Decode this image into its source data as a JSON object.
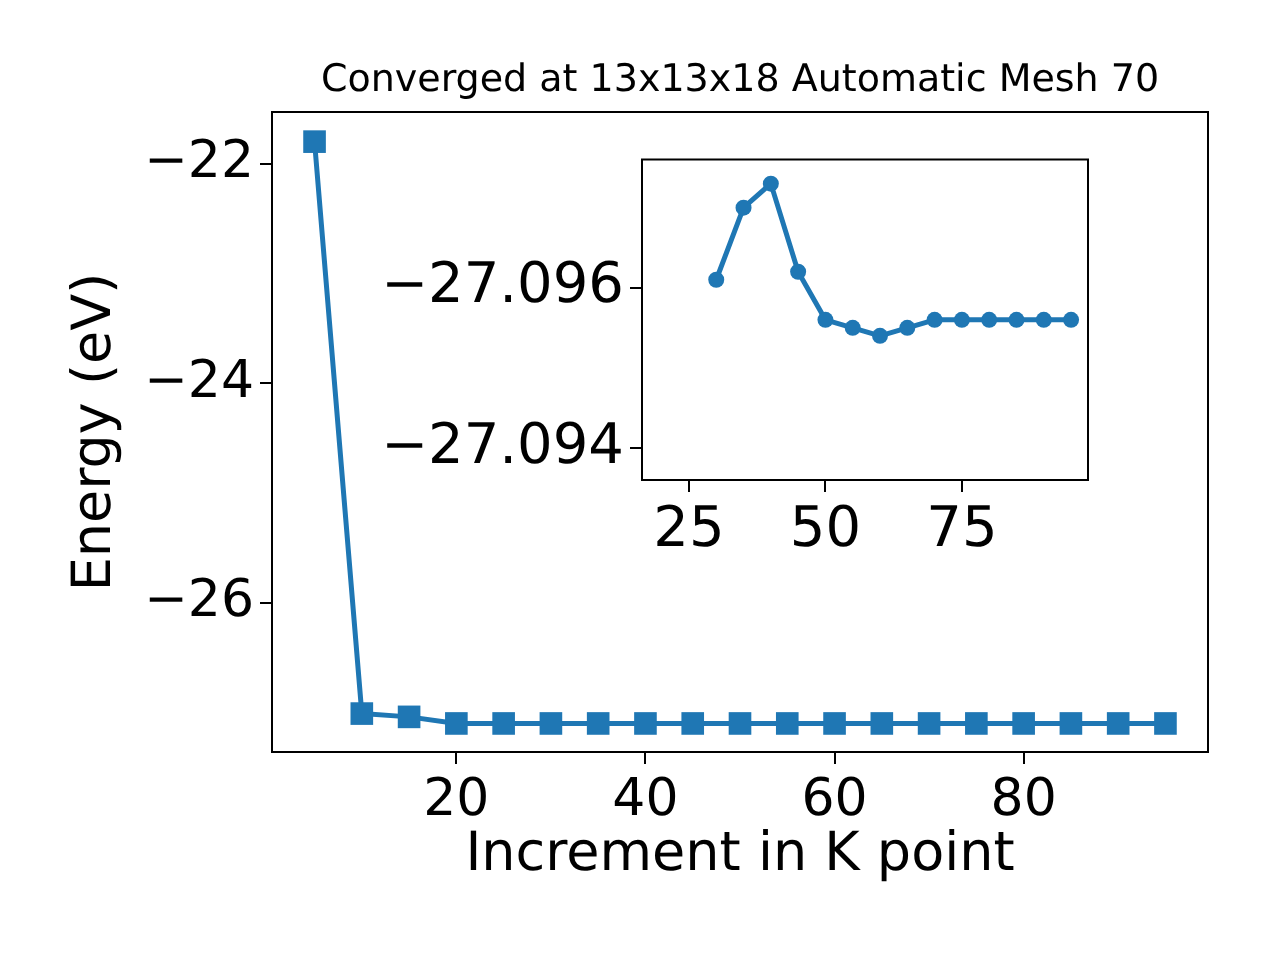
{
  "chart_data": [
    {
      "type": "line",
      "title": "Converged at 13x13x18 Automatic Mesh 70",
      "xlabel": "Increment in K point",
      "ylabel": "Energy (eV)",
      "x": [
        5,
        10,
        15,
        20,
        25,
        30,
        35,
        40,
        45,
        50,
        55,
        60,
        65,
        70,
        75,
        80,
        85,
        90,
        95
      ],
      "series": [
        {
          "color": "#1f77b4",
          "values": [
            -21.8,
            -27.01,
            -27.04,
            -27.1,
            -27.1,
            -27.1,
            -27.1,
            -27.1,
            -27.1,
            -27.1,
            -27.1,
            -27.1,
            -27.1,
            -27.1,
            -27.1,
            -27.1,
            -27.1,
            -27.1,
            -27.1
          ]
        }
      ],
      "xlim": [
        0.5,
        99.5
      ],
      "ylim": [
        -27.36,
        -21.53
      ],
      "xticks": [
        20,
        40,
        60,
        80
      ],
      "yticks": [
        {
          "value": -22,
          "label": "−22"
        },
        {
          "value": -24,
          "label": "−24"
        },
        {
          "value": -26,
          "label": "−26"
        }
      ],
      "grid": false,
      "legend": false,
      "marker": "square"
    },
    {
      "type": "line",
      "x": [
        30,
        35,
        40,
        45,
        50,
        55,
        60,
        65,
        70,
        75,
        80,
        85,
        90,
        95
      ],
      "series": [
        {
          "color": "#1f77b4",
          "values": [
            -27.0961,
            -27.097,
            -27.0973,
            -27.0962,
            -27.0956,
            -27.0955,
            -27.0954,
            -27.0955,
            -27.0956,
            -27.0956,
            -27.0956,
            -27.0956,
            -27.0956,
            -27.0956
          ]
        }
      ],
      "xlim": [
        16.4,
        98.1
      ],
      "ylim": [
        -27.0936,
        -27.0976
      ],
      "xticks": [
        25,
        50,
        75
      ],
      "yticks": [
        {
          "value": -27.096,
          "label": "−27.096"
        },
        {
          "value": -27.094,
          "label": "−27.094"
        }
      ],
      "grid": false,
      "legend": false,
      "marker": "circle"
    }
  ]
}
